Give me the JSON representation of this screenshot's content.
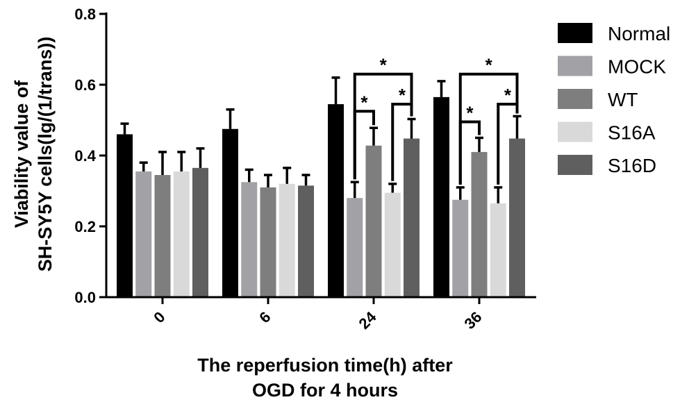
{
  "chart_data": {
    "type": "bar",
    "title": "",
    "xlabel": [
      "The reperfusion time(h) after",
      "OGD for 4 hours"
    ],
    "ylabel": [
      "Viability value of",
      "SH-SY5Y cells(lg/(1/trans))"
    ],
    "ylim": [
      0.0,
      0.8
    ],
    "yticks": [
      "0.0",
      "0.2",
      "0.4",
      "0.6",
      "0.8"
    ],
    "categories": [
      "0",
      "6",
      "24",
      "36"
    ],
    "legend_position": "right",
    "series": [
      {
        "name": "Normal",
        "color": "#000000",
        "values": [
          0.46,
          0.475,
          0.545,
          0.565
        ],
        "errors": [
          0.03,
          0.055,
          0.075,
          0.045
        ]
      },
      {
        "name": "MOCK",
        "color": "#a2a2a6",
        "values": [
          0.355,
          0.325,
          0.28,
          0.275
        ],
        "errors": [
          0.025,
          0.035,
          0.045,
          0.035
        ]
      },
      {
        "name": "WT",
        "color": "#7e7e7e",
        "values": [
          0.345,
          0.31,
          0.428,
          0.41
        ],
        "errors": [
          0.065,
          0.035,
          0.05,
          0.04
        ]
      },
      {
        "name": "S16A",
        "color": "#d9d9d9",
        "values": [
          0.355,
          0.32,
          0.295,
          0.265
        ],
        "errors": [
          0.055,
          0.045,
          0.025,
          0.045
        ]
      },
      {
        "name": "S16D",
        "color": "#5f5f5f",
        "values": [
          0.365,
          0.315,
          0.448,
          0.448
        ],
        "errors": [
          0.055,
          0.03,
          0.055,
          0.063
        ]
      }
    ],
    "significance": [
      {
        "category": "24",
        "from": "MOCK",
        "to": "S16D",
        "y": 0.63,
        "label": "*"
      },
      {
        "category": "24",
        "from": "MOCK",
        "to": "WT",
        "y": 0.525,
        "label": "*"
      },
      {
        "category": "24",
        "from": "S16A",
        "to": "S16D",
        "y": 0.545,
        "label": "*"
      },
      {
        "category": "36",
        "from": "MOCK",
        "to": "S16D",
        "y": 0.63,
        "label": "*"
      },
      {
        "category": "36",
        "from": "MOCK",
        "to": "WT",
        "y": 0.495,
        "label": "*"
      },
      {
        "category": "36",
        "from": "S16A",
        "to": "S16D",
        "y": 0.545,
        "label": "*"
      }
    ]
  }
}
